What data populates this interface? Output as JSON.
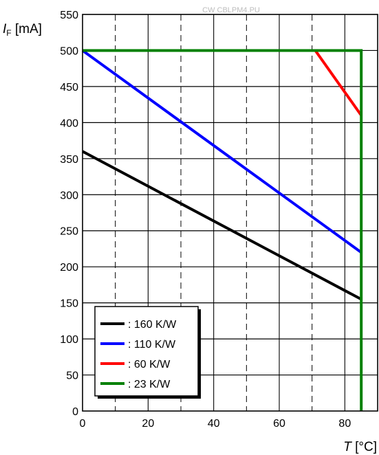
{
  "watermark": "CW CBLPM4.PU",
  "chart_data": {
    "type": "line",
    "ylabel": {
      "var": "I",
      "sub": "F",
      "unit": " [mA]"
    },
    "xlabel": {
      "var": "T",
      "unit": " [°C]"
    },
    "xlim": [
      0,
      90
    ],
    "ylim": [
      0,
      550
    ],
    "xticks": [
      0,
      20,
      40,
      60,
      80
    ],
    "yticks": [
      0,
      50,
      100,
      150,
      200,
      250,
      300,
      350,
      400,
      450,
      500,
      550
    ],
    "x_dashed_grid": [
      10,
      30,
      50,
      70
    ],
    "x_solid_grid": [
      20,
      40,
      60,
      80
    ],
    "y_grid": [
      50,
      100,
      150,
      200,
      250,
      300,
      350,
      400,
      450,
      500
    ],
    "grid": true,
    "legend_position": "bottom-left",
    "series": [
      {
        "name": ": 160 K/W",
        "color": "#000000",
        "points": [
          [
            0,
            360
          ],
          [
            85,
            155
          ]
        ]
      },
      {
        "name": ": 110 K/W",
        "color": "#0000ff",
        "points": [
          [
            0,
            500
          ],
          [
            85,
            220
          ]
        ]
      },
      {
        "name": ": 60 K/W",
        "color": "#ff0000",
        "points": [
          [
            0,
            500
          ],
          [
            71,
            500
          ],
          [
            85,
            410
          ]
        ]
      },
      {
        "name": ": 23 K/W",
        "color": "#008000",
        "points": [
          [
            0,
            500
          ],
          [
            85,
            500
          ],
          [
            85,
            0
          ]
        ]
      }
    ]
  }
}
